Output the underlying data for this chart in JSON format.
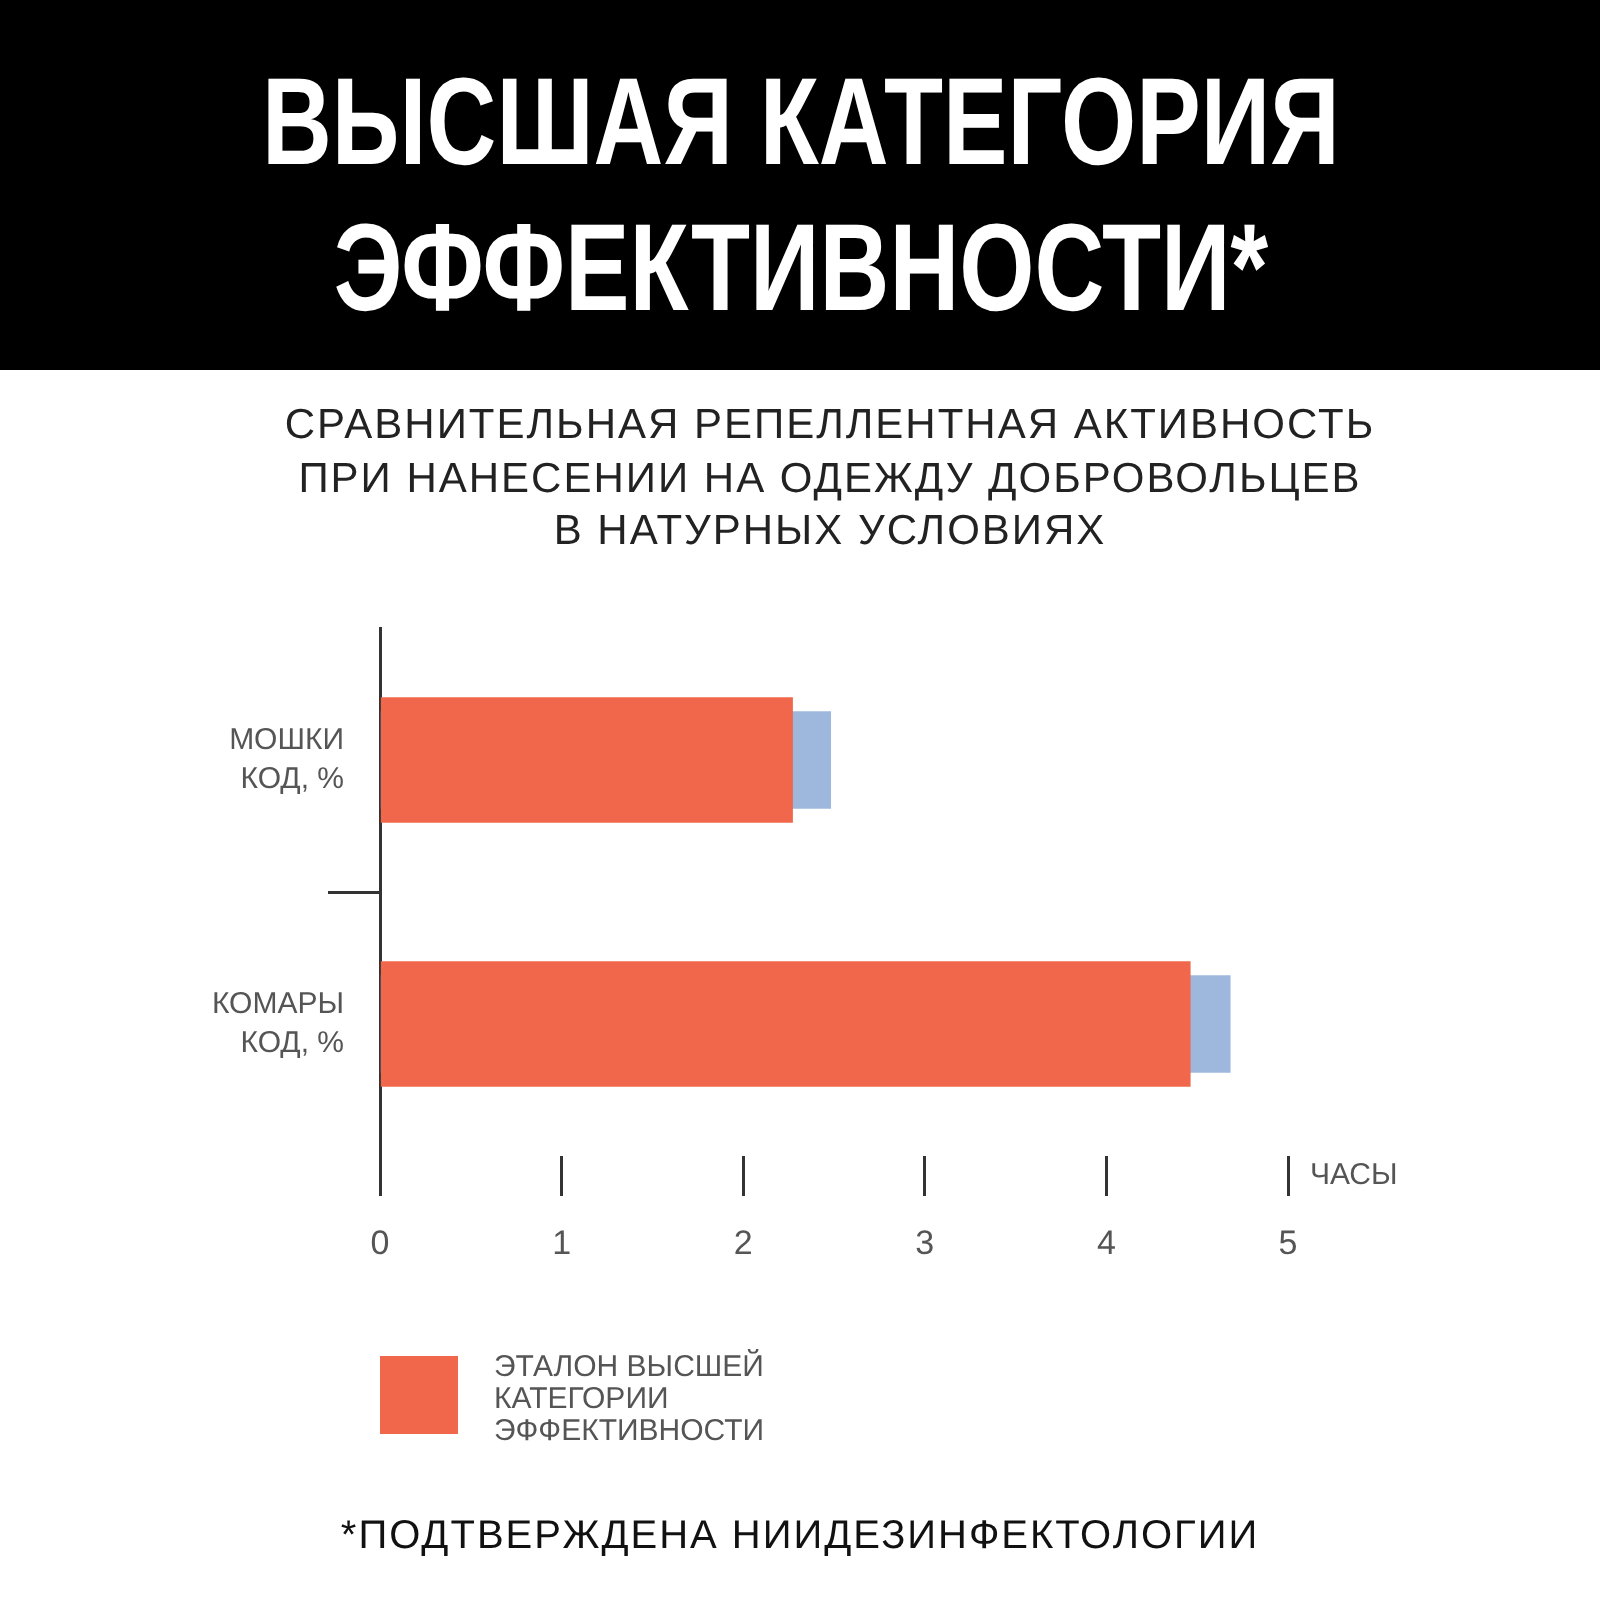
{
  "chart_data": {
    "type": "bar",
    "orientation": "horizontal",
    "title": "ВЫСШАЯ КАТЕГОРИЯ\nЭФФЕКТИВНОСТИ*",
    "subtitle": "СРАВНИТЕЛЬНАЯ РЕПЕЛЛЕНТНАЯ АКТИВНОСТЬ\nПРИ НАНЕСЕНИИ НА ОДЕЖДУ ДОБРОВОЛЬЦЕВ\nВ НАТУРНЫХ УСЛОВИЯХ",
    "xlabel": "ЧАСЫ",
    "categories": [
      "МОШКИ\nКОД, %",
      "КОМАРЫ\nКОД, %"
    ],
    "series": [
      {
        "name": "ЭТАЛОН ВЫСШЕЙ КАТЕГОРИИ ЭФФЕКТИВНОСТИ",
        "color": "#f0674b",
        "values": [
          2.27,
          4.46
        ]
      },
      {
        "color": "#9db8dc",
        "values": [
          2.48,
          4.68
        ]
      }
    ],
    "xlim": [
      0,
      5
    ],
    "xticks": [
      0,
      1,
      2,
      3,
      4,
      5
    ],
    "grid": false,
    "legend": "bottom",
    "annotations": [
      "*ПОДТВЕРЖДЕНА НИИДЕЗИНФЕКТОЛОГИИ"
    ]
  }
}
